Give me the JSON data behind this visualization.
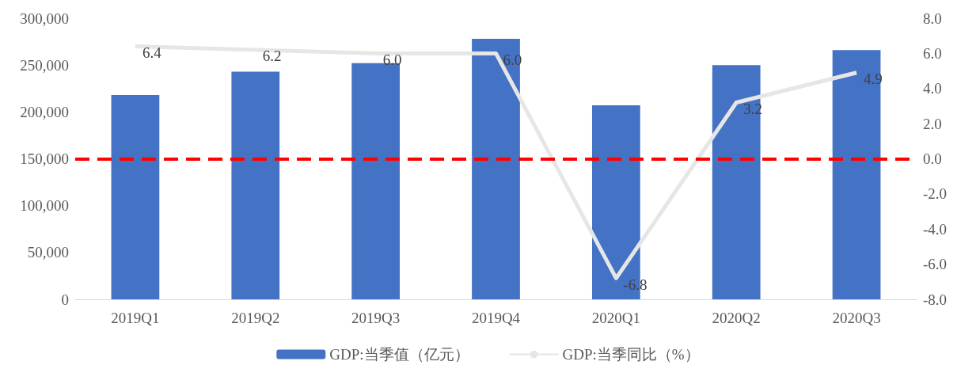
{
  "chart_data": {
    "type": "bar",
    "categories": [
      "2019Q1",
      "2019Q2",
      "2019Q3",
      "2019Q4",
      "2020Q1",
      "2020Q2",
      "2020Q3"
    ],
    "series": [
      {
        "name": "GDP:当季值（亿元）",
        "color": "#4472c4",
        "values": [
          218000,
          243000,
          252000,
          278000,
          207000,
          250000,
          266000
        ]
      },
      {
        "name": "GDP:当季同比（%）",
        "type": "line",
        "axis": "y2",
        "color": "#e7e6e6",
        "values": [
          6.4,
          6.2,
          6.0,
          6.0,
          -6.8,
          3.2,
          4.9
        ],
        "value_labels": [
          "6.4",
          "6.2",
          "6.0",
          "6.0",
          "-6.8",
          "3.2",
          "4.9"
        ]
      }
    ],
    "ylim": [
      0,
      300000
    ],
    "yticks": [
      {
        "value": 0,
        "label": "0"
      },
      {
        "value": 50000,
        "label": "50,000"
      },
      {
        "value": 100000,
        "label": "100,000"
      },
      {
        "value": 150000,
        "label": "150,000"
      },
      {
        "value": 200000,
        "label": "200,000"
      },
      {
        "value": 250000,
        "label": "250,000"
      },
      {
        "value": 300000,
        "label": "300,000"
      }
    ],
    "y2lim": [
      -8,
      8
    ],
    "y2ticks": [
      {
        "value": -8,
        "label": "-8.0"
      },
      {
        "value": -6,
        "label": "-6.0"
      },
      {
        "value": -4,
        "label": "-4.0"
      },
      {
        "value": -2,
        "label": "-2.0"
      },
      {
        "value": 0,
        "label": "0.0"
      },
      {
        "value": 2,
        "label": "2.0"
      },
      {
        "value": 4,
        "label": "4.0"
      },
      {
        "value": 6,
        "label": "6.0"
      },
      {
        "value": 8,
        "label": "8.0"
      }
    ],
    "ref_lines": [
      {
        "axis": "y2",
        "value": 0,
        "color": "#ff0000",
        "line_style": "dashed"
      }
    ],
    "grid": false,
    "legend": "bottom",
    "marker": "none"
  }
}
